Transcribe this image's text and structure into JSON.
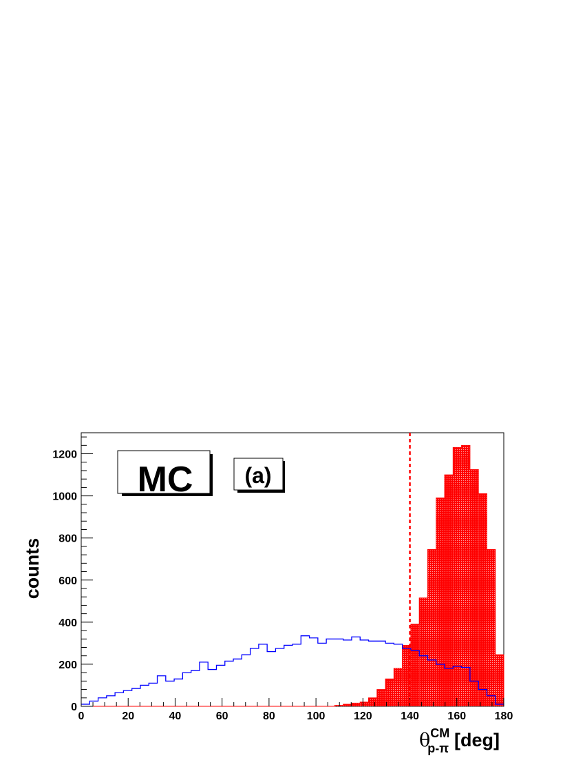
{
  "chart_data": {
    "type": "bar",
    "bin_width": 3.6,
    "xlim": [
      0,
      180
    ],
    "ylim": [
      0,
      1300
    ],
    "x_ticks": [
      0,
      20,
      40,
      60,
      80,
      100,
      120,
      140,
      160,
      180
    ],
    "y_ticks": [
      0,
      200,
      400,
      600,
      800,
      1000,
      1200
    ],
    "ylabel": "counts",
    "xlabel_parts": {
      "symbol": "θ",
      "superscript": "CM",
      "subscript": "p-π",
      "unit": "[deg]"
    },
    "cut_line_x": 140,
    "annotations": [
      "MC",
      "(a)"
    ],
    "series": [
      {
        "style": "outline",
        "color": "#0000ff",
        "values": [
          10,
          25,
          40,
          50,
          65,
          75,
          85,
          100,
          110,
          145,
          120,
          130,
          160,
          170,
          210,
          175,
          195,
          215,
          225,
          245,
          275,
          295,
          260,
          275,
          290,
          295,
          335,
          325,
          300,
          320,
          320,
          315,
          330,
          315,
          310,
          310,
          300,
          295,
          275,
          265,
          240,
          220,
          200,
          180,
          190,
          185,
          120,
          80,
          50,
          10
        ]
      },
      {
        "style": "filled",
        "color": "#ff0000",
        "values": [
          0,
          0,
          0,
          0,
          0,
          0,
          0,
          0,
          0,
          0,
          0,
          0,
          0,
          0,
          0,
          0,
          0,
          0,
          0,
          0,
          0,
          0,
          0,
          0,
          0,
          0,
          0,
          0,
          0,
          0,
          5,
          10,
          15,
          20,
          40,
          80,
          130,
          180,
          290,
          390,
          515,
          745,
          990,
          1100,
          1230,
          1240,
          1125,
          1010,
          745,
          245
        ]
      }
    ]
  }
}
